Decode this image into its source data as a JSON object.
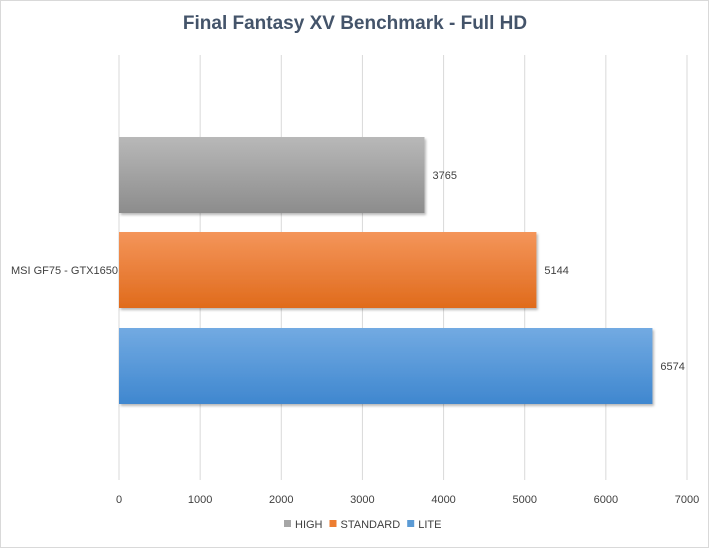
{
  "chart_data": {
    "type": "bar",
    "orientation": "horizontal",
    "title": "Final Fantasy XV Benchmark - Full HD",
    "categories": [
      "MSI GF75 - GTX1650"
    ],
    "series": [
      {
        "name": "HIGH",
        "values": [
          3765
        ],
        "color": "#a6a6a6"
      },
      {
        "name": "STANDARD",
        "values": [
          5144
        ],
        "color": "#ed7d31"
      },
      {
        "name": "LITE",
        "values": [
          6574
        ],
        "color": "#5b9bd5"
      }
    ],
    "xlim": [
      0,
      7000
    ],
    "xticks": [
      "0",
      "1000",
      "2000",
      "3000",
      "4000",
      "5000",
      "6000",
      "7000"
    ],
    "xlabel": "",
    "ylabel": "",
    "grid": true,
    "legend_position": "bottom"
  }
}
